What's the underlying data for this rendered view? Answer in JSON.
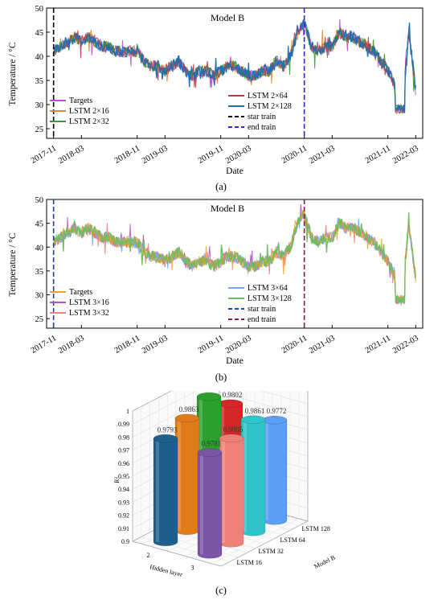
{
  "chart_data": [
    {
      "type": "line",
      "panel": "(a)",
      "title": "Model B",
      "xlabel": "Date",
      "ylabel": "Temperature / °C",
      "ylim": [
        23,
        50
      ],
      "yticks": [
        25,
        30,
        35,
        40,
        45,
        50
      ],
      "xticks": [
        "2017-11",
        "2018-03",
        "2018-11",
        "2019-03",
        "2019-11",
        "2020-03",
        "2020-11",
        "2021-03",
        "2021-11",
        "2022-03"
      ],
      "legend": [
        "Targets",
        "LSTM 2×16",
        "LSTM 2×32",
        "LSTM 2×64",
        "LSTM 2×128",
        "star train",
        "end train"
      ],
      "colors": [
        "#b44fd6",
        "#e8862a",
        "#2d9d2d",
        "#b23a48",
        "#1f6fb5",
        "#000000",
        "#2b2bd6"
      ],
      "markers": {
        "star_train": "2017-11",
        "end_train": "2020-11"
      },
      "x": [
        "2017-11",
        "2017-12",
        "2018-01",
        "2018-02",
        "2018-03",
        "2018-04",
        "2018-05",
        "2018-06",
        "2018-07",
        "2018-08",
        "2018-09",
        "2018-10",
        "2018-11",
        "2018-12",
        "2019-01",
        "2019-02",
        "2019-03",
        "2019-04",
        "2019-05",
        "2019-06",
        "2019-07",
        "2019-08",
        "2019-09",
        "2019-10",
        "2019-11",
        "2019-12",
        "2020-01",
        "2020-02",
        "2020-03",
        "2020-04",
        "2020-05",
        "2020-06",
        "2020-07",
        "2020-08",
        "2020-09",
        "2020-10",
        "2020-11",
        "2020-12",
        "2021-01",
        "2021-02",
        "2021-03",
        "2021-04",
        "2021-05",
        "2021-06",
        "2021-07",
        "2021-08",
        "2021-09",
        "2021-10",
        "2021-11",
        "2021-12",
        "2022-01",
        "2022-02",
        "2022-03"
      ],
      "series": [
        {
          "name": "Targets",
          "values": [
            41,
            42,
            43,
            44,
            43,
            44,
            43,
            42,
            42,
            41,
            41,
            41,
            41,
            39,
            38,
            38,
            37,
            38,
            39,
            37,
            36,
            37,
            37,
            36,
            37,
            38,
            38,
            37,
            36,
            36,
            37,
            37,
            39,
            38,
            40,
            45,
            47,
            42,
            41,
            42,
            42,
            45,
            44,
            44,
            43,
            42,
            41,
            39,
            37,
            34,
            29,
            45,
            33
          ]
        }
      ]
    },
    {
      "type": "line",
      "panel": "(b)",
      "title": "Model B",
      "xlabel": "Date",
      "ylabel": "Temperature / °C",
      "ylim": [
        23,
        50
      ],
      "yticks": [
        25,
        30,
        35,
        40,
        45,
        50
      ],
      "xticks": [
        "2017-11",
        "2018-03",
        "2018-11",
        "2019-03",
        "2019-11",
        "2020-03",
        "2020-11",
        "2021-03",
        "2021-11",
        "2022-03"
      ],
      "legend": [
        "Targets",
        "LSTM 3×16",
        "LSTM 3×32",
        "LSTM 3×64",
        "LSTM 3×128",
        "star train",
        "end train"
      ],
      "colors": [
        "#f0a020",
        "#b44fd6",
        "#f08080",
        "#6fa8ff",
        "#6cbf5a",
        "#1f3fb0",
        "#8b1c4a"
      ],
      "markers": {
        "star_train": "2017-11",
        "end_train": "2020-11"
      },
      "x": [
        "2017-11",
        "2017-12",
        "2018-01",
        "2018-02",
        "2018-03",
        "2018-04",
        "2018-05",
        "2018-06",
        "2018-07",
        "2018-08",
        "2018-09",
        "2018-10",
        "2018-11",
        "2018-12",
        "2019-01",
        "2019-02",
        "2019-03",
        "2019-04",
        "2019-05",
        "2019-06",
        "2019-07",
        "2019-08",
        "2019-09",
        "2019-10",
        "2019-11",
        "2019-12",
        "2020-01",
        "2020-02",
        "2020-03",
        "2020-04",
        "2020-05",
        "2020-06",
        "2020-07",
        "2020-08",
        "2020-09",
        "2020-10",
        "2020-11",
        "2020-12",
        "2021-01",
        "2021-02",
        "2021-03",
        "2021-04",
        "2021-05",
        "2021-06",
        "2021-07",
        "2021-08",
        "2021-09",
        "2021-10",
        "2021-11",
        "2021-12",
        "2022-01",
        "2022-02",
        "2022-03"
      ],
      "series": [
        {
          "name": "Targets",
          "values": [
            41,
            42,
            43,
            44,
            43,
            44,
            43,
            42,
            42,
            41,
            41,
            41,
            41,
            39,
            38,
            38,
            37,
            38,
            39,
            37,
            36,
            37,
            37,
            36,
            37,
            38,
            38,
            37,
            36,
            36,
            37,
            37,
            39,
            38,
            40,
            45,
            47,
            42,
            41,
            42,
            42,
            45,
            44,
            44,
            43,
            42,
            41,
            39,
            37,
            34,
            29,
            45,
            33
          ]
        }
      ]
    },
    {
      "type": "bar3d",
      "panel": "(c)",
      "zlabel": "R²",
      "xlabel": "Hidden layer",
      "ylabel": "Model B",
      "zlim": [
        0.9,
        1.0
      ],
      "zticks": [
        "0.9",
        "0.91",
        "0.92",
        "0.93",
        "0.94",
        "0.95",
        "0.96",
        "0.97",
        "0.98",
        "0.99",
        "1"
      ],
      "hidden_layers": [
        "2",
        "3"
      ],
      "units": [
        "LSTM 16",
        "LSTM 32",
        "LSTM 64",
        "LSTM 128"
      ],
      "bars": [
        {
          "layer": "2",
          "unit": "LSTM 16",
          "value": 0.9793,
          "label": "0.9793",
          "color": "#1f5f8b"
        },
        {
          "layer": "2",
          "unit": "LSTM 32",
          "value": 0.9863,
          "label": "0.9863",
          "color": "#e07b1a"
        },
        {
          "layer": "2",
          "unit": "LSTM 64",
          "value": 0.9942,
          "label": "0.9942",
          "color": "#2ca02c"
        },
        {
          "layer": "2",
          "unit": "LSTM 128",
          "value": 0.9802,
          "label": "0.9802",
          "color": "#d62728"
        },
        {
          "layer": "3",
          "unit": "LSTM 16",
          "value": 0.9781,
          "label": "0.9781",
          "color": "#7b55a8"
        },
        {
          "layer": "3",
          "unit": "LSTM 32",
          "value": 0.9805,
          "label": "0.9805",
          "color": "#f08078"
        },
        {
          "layer": "3",
          "unit": "LSTM 64",
          "value": 0.9861,
          "label": "0.9861",
          "color": "#2ec4c9"
        },
        {
          "layer": "3",
          "unit": "LSTM 128",
          "value": 0.9772,
          "label": "0.9772",
          "color": "#5a9ef5"
        }
      ]
    }
  ]
}
